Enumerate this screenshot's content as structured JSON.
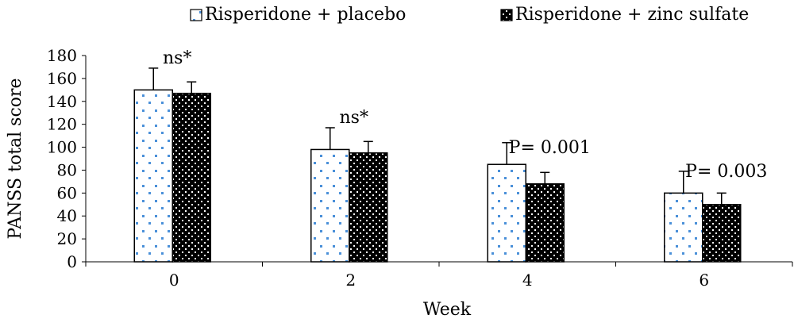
{
  "chart_data": {
    "type": "bar",
    "title": "",
    "xlabel": "Week",
    "ylabel": "PANSS total score",
    "categories": [
      "0",
      "2",
      "4",
      "6"
    ],
    "ylim": [
      0,
      180
    ],
    "y_ticks": [
      0,
      20,
      40,
      60,
      80,
      100,
      120,
      140,
      160,
      180
    ],
    "grid": false,
    "legend_position": "top",
    "series": [
      {
        "name": "Risperidone + placebo",
        "values": [
          150,
          98,
          85,
          60
        ],
        "error": [
          19,
          19,
          19,
          19
        ],
        "pattern": "dots"
      },
      {
        "name": "Risperidone + zinc sulfate",
        "values": [
          147,
          95,
          68,
          50
        ],
        "error": [
          10,
          10,
          10,
          10
        ],
        "pattern": "checker"
      }
    ],
    "annotations": [
      {
        "category": "0",
        "text": "ns*",
        "y": 173
      },
      {
        "category": "2",
        "text": "ns*",
        "y": 121
      },
      {
        "category": "4",
        "text": "P= 0.001",
        "y": 95
      },
      {
        "category": "6",
        "text": "P= 0.003",
        "y": 74
      }
    ],
    "colors": {
      "bar_outline": "#000000",
      "dot_fill": "#4a90d9",
      "checker_dark": "#000000",
      "checker_light": "#ffffff"
    }
  }
}
